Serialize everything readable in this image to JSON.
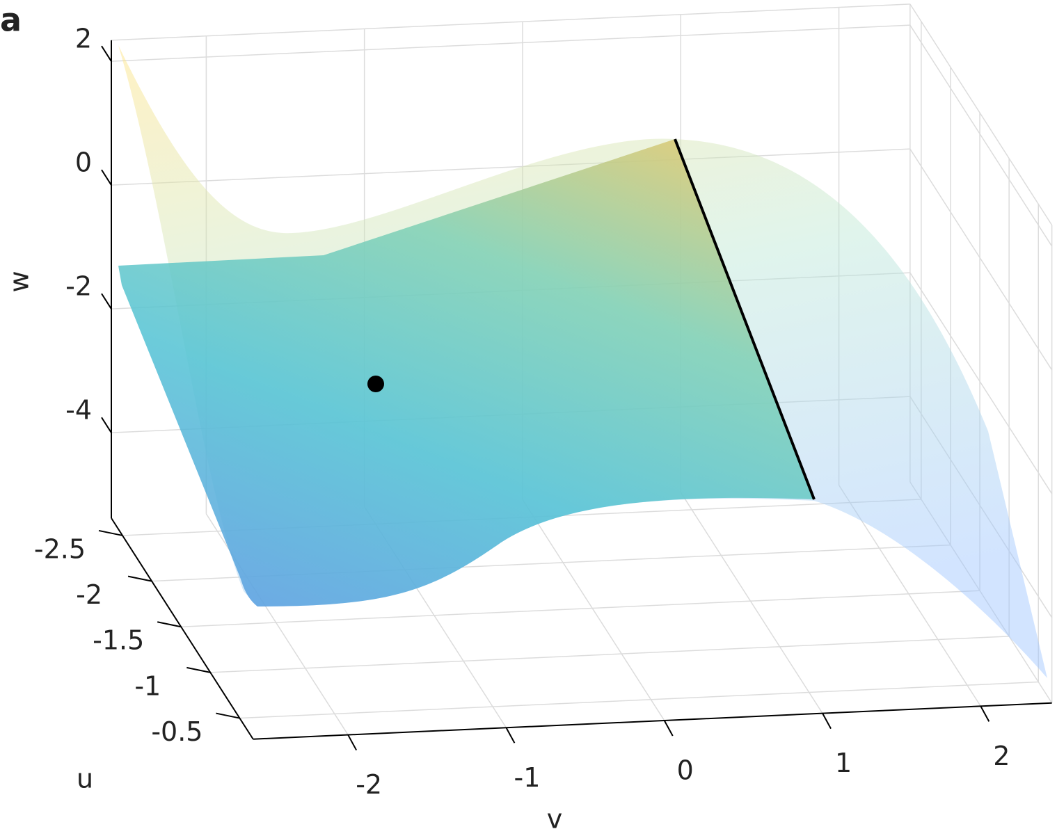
{
  "chart_data": {
    "type": "surface3d",
    "panel_label": "a",
    "xlabel": "v",
    "ylabel": "u",
    "zlabel": "w",
    "xlim": [
      -2.6,
      2.45
    ],
    "xticks": [
      -2,
      -1,
      0,
      1,
      2
    ],
    "ylim": [
      -2.69,
      -0.27
    ],
    "yticks": [
      -2.5,
      -2,
      -1.5,
      -1,
      -0.5
    ],
    "zlim": [
      -5.38,
      2.34
    ],
    "zticks": [
      2,
      0,
      -2,
      -4
    ],
    "grid": true
  }
}
